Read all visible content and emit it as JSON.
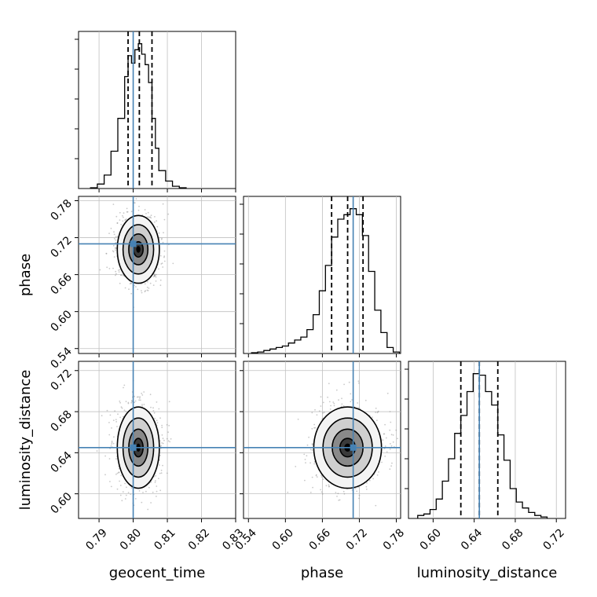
{
  "chart_data": {
    "type": "corner",
    "parameters": [
      "geocent_time",
      "phase",
      "luminosity_distance"
    ],
    "truths": {
      "geocent_time": 0.8,
      "phase": 0.71,
      "luminosity_distance": 0.645
    },
    "colors": {
      "truth": "#4682b4",
      "hist": "#000000",
      "grid": "#c0c0c0"
    },
    "ranges": {
      "geocent_time": [
        0.784,
        0.83
      ],
      "phase": [
        0.532,
        0.787
      ],
      "luminosity_distance": [
        0.576,
        0.729
      ]
    },
    "ticks": {
      "geocent_time": [
        "0.79",
        "0.80",
        "0.81",
        "0.82",
        "0.83"
      ],
      "phase": [
        "0.54",
        "0.60",
        "0.66",
        "0.72",
        "0.78"
      ],
      "luminosity_distance": [
        "0.60",
        "0.64",
        "0.68",
        "0.72"
      ]
    },
    "quantiles": {
      "geocent_time": [
        0.7985,
        0.8018,
        0.8055
      ],
      "phase": [
        0.675,
        0.701,
        0.726
      ],
      "luminosity_distance": [
        0.627,
        0.645,
        0.663
      ]
    },
    "histograms": {
      "geocent_time": {
        "edges": [
          0.7875,
          0.7895,
          0.7915,
          0.7935,
          0.7955,
          0.7975,
          0.7985,
          0.7995,
          0.8005,
          0.8015,
          0.8025,
          0.8035,
          0.8045,
          0.8055,
          0.8065,
          0.8075,
          0.8095,
          0.8115,
          0.8135,
          0.8155
        ],
        "counts": [
          0.005,
          0.03,
          0.09,
          0.25,
          0.47,
          0.75,
          0.89,
          0.84,
          0.93,
          0.97,
          0.9,
          0.83,
          0.71,
          0.47,
          0.27,
          0.12,
          0.05,
          0.015,
          0.005
        ]
      },
      "phase": {
        "edges": [
          0.545,
          0.555,
          0.565,
          0.575,
          0.585,
          0.595,
          0.605,
          0.615,
          0.625,
          0.635,
          0.645,
          0.655,
          0.665,
          0.675,
          0.685,
          0.695,
          0.705,
          0.715,
          0.725,
          0.735,
          0.745,
          0.755,
          0.765,
          0.775,
          0.785
        ],
        "counts": [
          0.005,
          0.01,
          0.02,
          0.03,
          0.04,
          0.05,
          0.07,
          0.09,
          0.11,
          0.16,
          0.26,
          0.42,
          0.59,
          0.78,
          0.9,
          0.93,
          0.97,
          0.93,
          0.79,
          0.55,
          0.29,
          0.14,
          0.04,
          0.01
        ]
      },
      "luminosity_distance": {
        "edges": [
          0.585,
          0.591,
          0.597,
          0.603,
          0.609,
          0.615,
          0.621,
          0.627,
          0.633,
          0.639,
          0.645,
          0.651,
          0.657,
          0.663,
          0.669,
          0.675,
          0.681,
          0.687,
          0.693,
          0.699,
          0.705,
          0.711
        ],
        "counts": [
          0.02,
          0.03,
          0.06,
          0.13,
          0.25,
          0.4,
          0.57,
          0.69,
          0.85,
          0.97,
          0.96,
          0.85,
          0.76,
          0.56,
          0.39,
          0.2,
          0.11,
          0.07,
          0.04,
          0.02,
          0.01
        ]
      }
    },
    "posterior_center": {
      "geocent_time": 0.8015,
      "phase": 0.701,
      "luminosity_distance": 0.645
    },
    "posterior_spread": {
      "geocent_time": 0.0028,
      "phase": 0.025,
      "luminosity_distance": 0.018
    }
  }
}
